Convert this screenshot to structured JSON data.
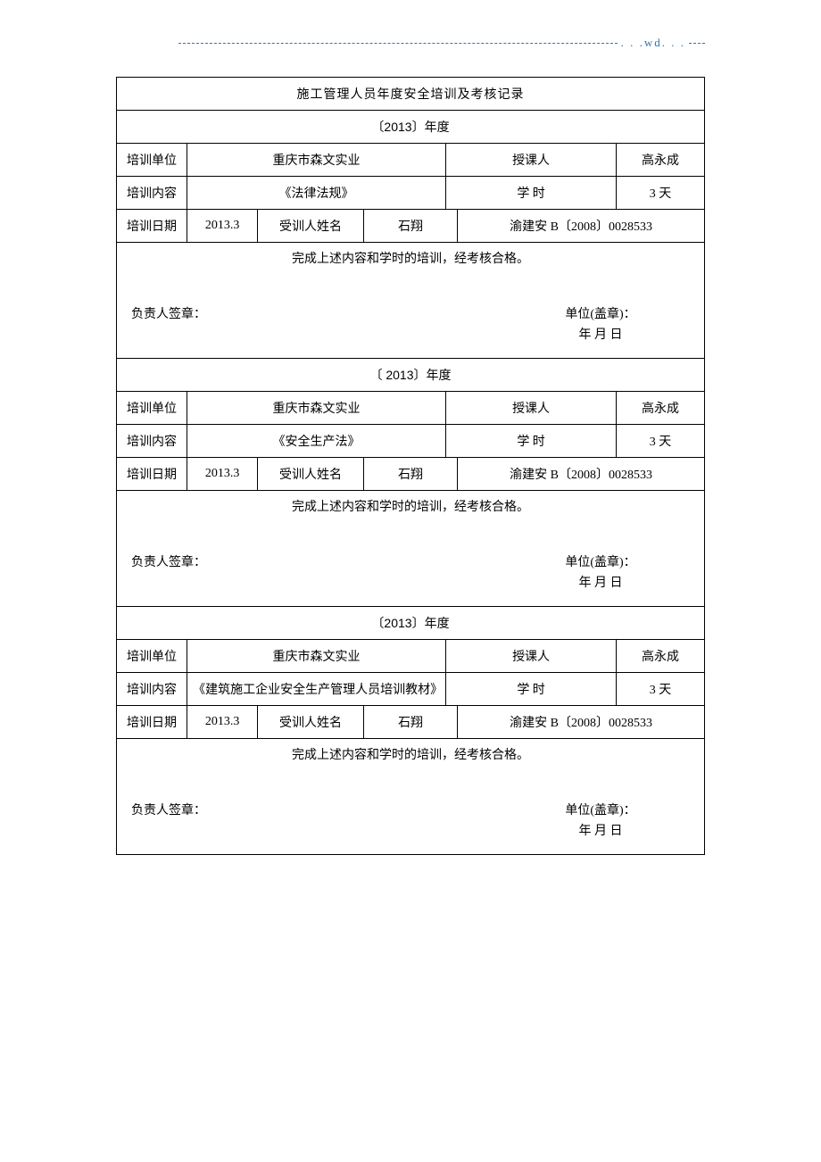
{
  "header": {
    "wd": ". . .wd. . ."
  },
  "title": "施工管理人员年度安全培训及考核记录",
  "labels": {
    "unit": "培训单位",
    "instructor": "授课人",
    "content": "培训内容",
    "hours": "学   时",
    "date": "培训日期",
    "trainee": "受训人姓名"
  },
  "sig": {
    "completion": "完成上述内容和学时的培训，经考核合格。",
    "responsible": "负责人签章：",
    "stamp": "单位(盖章)：",
    "dateline": "年     月     日"
  },
  "sections": [
    {
      "year": "〔2013〕年度",
      "unit": "重庆市森文实业",
      "instructor": "高永成",
      "content": "《法律法规》",
      "hours": "3 天",
      "date": "2013.3",
      "trainee": "石翔",
      "cert": "渝建安 B〔2008〕0028533"
    },
    {
      "year": "〔 2013〕年度",
      "unit": "重庆市森文实业",
      "instructor": "高永成",
      "content": "《安全生产法》",
      "hours": "3 天",
      "date": "2013.3",
      "trainee": "石翔",
      "cert": "渝建安 B〔2008〕0028533"
    },
    {
      "year": "〔2013〕年度",
      "unit": "重庆市森文实业",
      "instructor": "高永成",
      "content": "《建筑施工企业安全生产管理人员培训教材》",
      "hours": "3 天",
      "date": "2013.3",
      "trainee": "石翔",
      "cert": "渝建安 B〔2008〕0028533"
    }
  ]
}
